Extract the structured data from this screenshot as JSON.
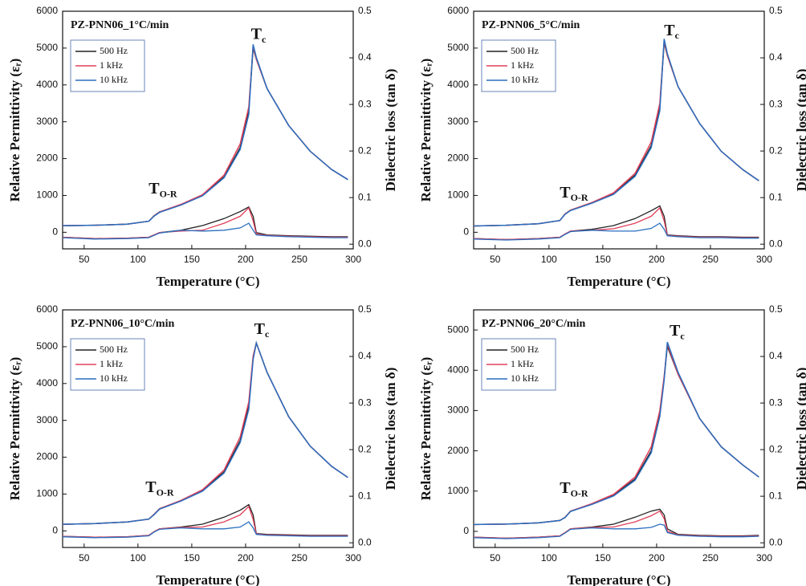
{
  "chart_data": [
    {
      "type": "line",
      "title": "PZ-PNN06_1°C/min",
      "x_label": "Temperature (°C)",
      "y_label": "Relative Permittivity (εᵣ)",
      "y2_label": "Dielectric loss (tan δ)",
      "x": [
        30,
        60,
        90,
        110,
        115,
        120,
        140,
        160,
        180,
        195,
        203,
        207,
        210,
        220,
        240,
        260,
        280,
        295
      ],
      "xlim": [
        30,
        300
      ],
      "xticks": [
        50,
        100,
        150,
        200,
        250,
        300
      ],
      "ylim": [
        -450,
        6000
      ],
      "yticks": [
        0,
        1000,
        2000,
        3000,
        4000,
        5000,
        6000
      ],
      "y2lim": [
        -0.01,
        0.5
      ],
      "y2ticks": [
        0.0,
        0.1,
        0.2,
        0.3,
        0.4,
        0.5
      ],
      "series": [
        {
          "name": "500 Hz",
          "color": "#222222",
          "values": [
            180,
            190,
            220,
            300,
            450,
            550,
            750,
            1000,
            1500,
            2300,
            3300,
            5000,
            4700,
            3900,
            2900,
            2200,
            1700,
            1430
          ],
          "y2_values": [
            0.015,
            0.012,
            0.013,
            0.015,
            0.02,
            0.025,
            0.03,
            0.04,
            0.055,
            0.07,
            0.08,
            0.06,
            0.025,
            0.02,
            0.018,
            0.017,
            0.016,
            0.016
          ]
        },
        {
          "name": "1 kHz",
          "color": "#e0405a",
          "values": [
            180,
            190,
            220,
            300,
            450,
            550,
            760,
            1020,
            1550,
            2400,
            3400,
            5050,
            4700,
            3900,
            2900,
            2200,
            1700,
            1430
          ],
          "y2_values": [
            0.015,
            0.012,
            0.013,
            0.015,
            0.02,
            0.025,
            0.028,
            0.03,
            0.045,
            0.06,
            0.078,
            0.05,
            0.022,
            0.019,
            0.017,
            0.016,
            0.015,
            0.015
          ]
        },
        {
          "name": "10 kHz",
          "color": "#2a6fc0",
          "values": [
            180,
            190,
            220,
            300,
            440,
            540,
            740,
            990,
            1480,
            2250,
            3200,
            5100,
            4750,
            3900,
            2900,
            2200,
            1700,
            1430
          ],
          "y2_values": [
            0.014,
            0.011,
            0.012,
            0.014,
            0.019,
            0.024,
            0.03,
            0.028,
            0.03,
            0.035,
            0.045,
            0.03,
            0.02,
            0.018,
            0.016,
            0.015,
            0.014,
            0.014
          ]
        }
      ],
      "annotations": [
        {
          "text": "T",
          "sub": "c",
          "x": 205,
          "y": 5350
        },
        {
          "text": "T",
          "sub": "O-R",
          "x": 110,
          "y": 1150
        }
      ]
    },
    {
      "type": "line",
      "title": "PZ-PNN06_5°C/min",
      "x_label": "Temperature (°C)",
      "y_label": "Relative Permittivity (εᵣ)",
      "y2_label": "Dielectric loss (tan δ)",
      "x": [
        30,
        60,
        90,
        110,
        115,
        120,
        140,
        160,
        180,
        195,
        203,
        207,
        210,
        220,
        240,
        260,
        280,
        295
      ],
      "xlim": [
        30,
        300
      ],
      "xticks": [
        50,
        100,
        150,
        200,
        250,
        300
      ],
      "ylim": [
        -450,
        6000
      ],
      "yticks": [
        0,
        1000,
        2000,
        3000,
        4000,
        5000,
        6000
      ],
      "y2lim": [
        -0.01,
        0.5
      ],
      "y2ticks": [
        0.0,
        0.1,
        0.2,
        0.3,
        0.4,
        0.5
      ],
      "series": [
        {
          "name": "500 Hz",
          "color": "#222222",
          "values": [
            170,
            190,
            230,
            320,
            500,
            600,
            800,
            1050,
            1550,
            2350,
            3400,
            5150,
            4800,
            3950,
            2950,
            2200,
            1700,
            1400
          ],
          "y2_values": [
            0.012,
            0.01,
            0.012,
            0.015,
            0.022,
            0.028,
            0.032,
            0.04,
            0.055,
            0.072,
            0.082,
            0.06,
            0.02,
            0.018,
            0.016,
            0.016,
            0.015,
            0.015
          ]
        },
        {
          "name": "1 kHz",
          "color": "#e0405a",
          "values": [
            170,
            190,
            230,
            320,
            500,
            600,
            810,
            1070,
            1600,
            2450,
            3500,
            5200,
            4800,
            3950,
            2950,
            2200,
            1700,
            1400
          ],
          "y2_values": [
            0.012,
            0.01,
            0.012,
            0.015,
            0.022,
            0.028,
            0.03,
            0.033,
            0.045,
            0.06,
            0.078,
            0.05,
            0.019,
            0.017,
            0.015,
            0.015,
            0.014,
            0.014
          ]
        },
        {
          "name": "10 kHz",
          "color": "#2a6fc0",
          "values": [
            170,
            190,
            230,
            320,
            490,
            590,
            790,
            1030,
            1520,
            2300,
            3300,
            5250,
            4850,
            3950,
            2950,
            2200,
            1700,
            1400
          ],
          "y2_values": [
            0.011,
            0.009,
            0.011,
            0.014,
            0.021,
            0.027,
            0.03,
            0.028,
            0.028,
            0.034,
            0.045,
            0.032,
            0.018,
            0.016,
            0.014,
            0.014,
            0.013,
            0.013
          ]
        }
      ],
      "annotations": [
        {
          "text": "T",
          "sub": "c",
          "x": 207,
          "y": 5450
        },
        {
          "text": "T",
          "sub": "O-R",
          "x": 110,
          "y": 1050
        }
      ]
    },
    {
      "type": "line",
      "title": "PZ-PNN06_10°C/min",
      "x_label": "Temperature (°C)",
      "y_label": "Relative Permittivity (εᵣ)",
      "y2_label": "Dielectric loss (tan δ)",
      "x": [
        30,
        60,
        90,
        110,
        115,
        120,
        140,
        160,
        180,
        195,
        203,
        207,
        210,
        220,
        240,
        260,
        280,
        295
      ],
      "xlim": [
        30,
        300
      ],
      "xticks": [
        50,
        100,
        150,
        200,
        250,
        300
      ],
      "ylim": [
        -450,
        6000
      ],
      "yticks": [
        0,
        1000,
        2000,
        3000,
        4000,
        5000,
        6000
      ],
      "y2lim": [
        -0.01,
        0.5
      ],
      "y2ticks": [
        0.0,
        0.1,
        0.2,
        0.3,
        0.4,
        0.5
      ],
      "series": [
        {
          "name": "500 Hz",
          "color": "#222222",
          "values": [
            180,
            200,
            240,
            320,
            450,
            600,
            820,
            1100,
            1600,
            2450,
            3400,
            4700,
            5100,
            4300,
            3100,
            2300,
            1750,
            1450
          ],
          "y2_values": [
            0.014,
            0.012,
            0.013,
            0.016,
            0.024,
            0.03,
            0.034,
            0.04,
            0.055,
            0.07,
            0.082,
            0.06,
            0.02,
            0.018,
            0.017,
            0.016,
            0.016,
            0.016
          ]
        },
        {
          "name": "1 kHz",
          "color": "#e0405a",
          "values": [
            180,
            200,
            240,
            320,
            450,
            600,
            830,
            1120,
            1650,
            2550,
            3500,
            4750,
            5100,
            4300,
            3100,
            2300,
            1750,
            1450
          ],
          "y2_values": [
            0.014,
            0.012,
            0.013,
            0.016,
            0.024,
            0.03,
            0.033,
            0.034,
            0.045,
            0.06,
            0.078,
            0.05,
            0.019,
            0.017,
            0.016,
            0.015,
            0.015,
            0.015
          ]
        },
        {
          "name": "10 kHz",
          "color": "#2a6fc0",
          "values": [
            180,
            200,
            240,
            320,
            440,
            590,
            810,
            1080,
            1570,
            2400,
            3300,
            4650,
            5100,
            4300,
            3100,
            2300,
            1750,
            1450
          ],
          "y2_values": [
            0.013,
            0.011,
            0.012,
            0.015,
            0.023,
            0.029,
            0.032,
            0.03,
            0.03,
            0.034,
            0.045,
            0.032,
            0.018,
            0.016,
            0.015,
            0.014,
            0.014,
            0.014
          ]
        }
      ],
      "annotations": [
        {
          "text": "T",
          "sub": "c",
          "x": 208,
          "y": 5450
        },
        {
          "text": "T",
          "sub": "O-R",
          "x": 107,
          "y": 1150
        }
      ]
    },
    {
      "type": "line",
      "title": "PZ-PNN06_20°C/min",
      "x_label": "Temperature (°C)",
      "y_label": "Relative Permittivity (εᵣ)",
      "y2_label": "Dielectric loss (tan δ)",
      "x": [
        30,
        60,
        90,
        110,
        115,
        120,
        140,
        160,
        180,
        195,
        203,
        207,
        210,
        220,
        240,
        260,
        280,
        295
      ],
      "xlim": [
        30,
        300
      ],
      "xticks": [
        50,
        100,
        150,
        200,
        250,
        300
      ],
      "ylim": [
        -400,
        5500
      ],
      "yticks": [
        0,
        1000,
        2000,
        3000,
        4000,
        5000
      ],
      "y2lim": [
        -0.01,
        0.5
      ],
      "y2ticks": [
        0.0,
        0.1,
        0.2,
        0.3,
        0.4,
        0.5
      ],
      "series": [
        {
          "name": "500 Hz",
          "color": "#222222",
          "values": [
            170,
            180,
            210,
            270,
            350,
            500,
            680,
            900,
            1300,
            2000,
            2900,
            3800,
            4600,
            3900,
            2800,
            2100,
            1650,
            1350
          ],
          "y2_values": [
            0.012,
            0.01,
            0.012,
            0.015,
            0.022,
            0.03,
            0.034,
            0.04,
            0.055,
            0.068,
            0.072,
            0.06,
            0.03,
            0.018,
            0.016,
            0.015,
            0.015,
            0.016
          ]
        },
        {
          "name": "1 kHz",
          "color": "#e0405a",
          "values": [
            170,
            180,
            210,
            270,
            350,
            500,
            690,
            920,
            1350,
            2100,
            3000,
            3850,
            4650,
            3900,
            2800,
            2100,
            1650,
            1350
          ],
          "y2_values": [
            0.012,
            0.01,
            0.012,
            0.015,
            0.022,
            0.03,
            0.033,
            0.034,
            0.045,
            0.058,
            0.068,
            0.052,
            0.025,
            0.017,
            0.015,
            0.014,
            0.014,
            0.015
          ]
        },
        {
          "name": "10 kHz",
          "color": "#2a6fc0",
          "values": [
            170,
            180,
            210,
            270,
            345,
            495,
            670,
            880,
            1270,
            1950,
            2850,
            3750,
            4700,
            3950,
            2800,
            2100,
            1650,
            1350
          ],
          "y2_values": [
            0.011,
            0.009,
            0.011,
            0.014,
            0.021,
            0.029,
            0.032,
            0.03,
            0.03,
            0.033,
            0.04,
            0.038,
            0.022,
            0.016,
            0.014,
            0.013,
            0.013,
            0.014
          ]
        }
      ],
      "annotations": [
        {
          "text": "T",
          "sub": "c",
          "x": 212,
          "y": 4950
        },
        {
          "text": "T",
          "sub": "O-R",
          "x": 110,
          "y": 1050
        }
      ]
    }
  ]
}
